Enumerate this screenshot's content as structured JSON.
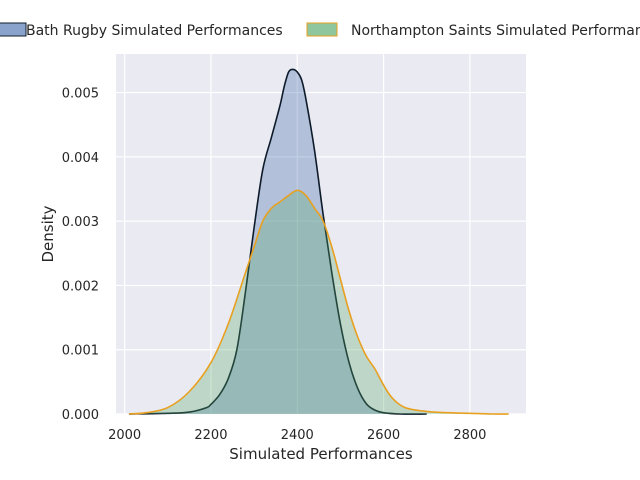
{
  "chart_data": {
    "type": "area",
    "title": "",
    "xlabel": "Simulated Performances",
    "ylabel": "Density",
    "xlim": [
      1980,
      2930
    ],
    "ylim": [
      0,
      0.0056
    ],
    "x_ticks": [
      2000,
      2200,
      2400,
      2600,
      2800
    ],
    "y_ticks": [
      0.0,
      0.001,
      0.002,
      0.003,
      0.004,
      0.005
    ],
    "x_tick_labels": [
      "2000",
      "2200",
      "2400",
      "2600",
      "2800"
    ],
    "y_tick_labels": [
      "0.000",
      "0.001",
      "0.002",
      "0.003",
      "0.004",
      "0.005"
    ],
    "grid": true,
    "legend_position": "top-outside",
    "series": [
      {
        "name": "Bath Rugby Simulated Performances",
        "fill_color": "#4c72b0",
        "fill_opacity": 0.35,
        "line_color": "#0d1b2a",
        "x": [
          2010,
          2100,
          2150,
          2190,
          2200,
          2220,
          2240,
          2260,
          2280,
          2300,
          2320,
          2340,
          2360,
          2370,
          2380,
          2390,
          2400,
          2410,
          2420,
          2440,
          2460,
          2480,
          2500,
          2520,
          2540,
          2560,
          2580,
          2600,
          2640,
          2700
        ],
        "y": [
          0,
          1e-05,
          3e-05,
          0.0001,
          0.00015,
          0.0003,
          0.00055,
          0.001,
          0.0019,
          0.0029,
          0.0038,
          0.0043,
          0.0048,
          0.0051,
          0.00532,
          0.00536,
          0.00532,
          0.0052,
          0.0049,
          0.0041,
          0.0031,
          0.0022,
          0.0014,
          0.0008,
          0.0004,
          0.00016,
          6e-05,
          2e-05,
          0,
          0
        ]
      },
      {
        "name": "Northampton Saints Simulated Performances",
        "fill_color": "#55a868",
        "fill_opacity": 0.3,
        "line_color": "#e8a020",
        "x": [
          2010,
          2050,
          2100,
          2150,
          2200,
          2240,
          2280,
          2300,
          2320,
          2340,
          2360,
          2380,
          2400,
          2420,
          2440,
          2460,
          2480,
          2500,
          2520,
          2540,
          2560,
          2580,
          2600,
          2620,
          2650,
          2700,
          2750,
          2800,
          2850,
          2890
        ],
        "y": [
          0,
          2e-05,
          0.0001,
          0.00035,
          0.0008,
          0.0014,
          0.0022,
          0.0026,
          0.003,
          0.0032,
          0.0033,
          0.0034,
          0.00348,
          0.0034,
          0.0032,
          0.003,
          0.0026,
          0.0021,
          0.0016,
          0.0012,
          0.0009,
          0.0007,
          0.00045,
          0.00025,
          0.0001,
          4e-05,
          2e-05,
          1e-05,
          0,
          0
        ]
      }
    ]
  }
}
